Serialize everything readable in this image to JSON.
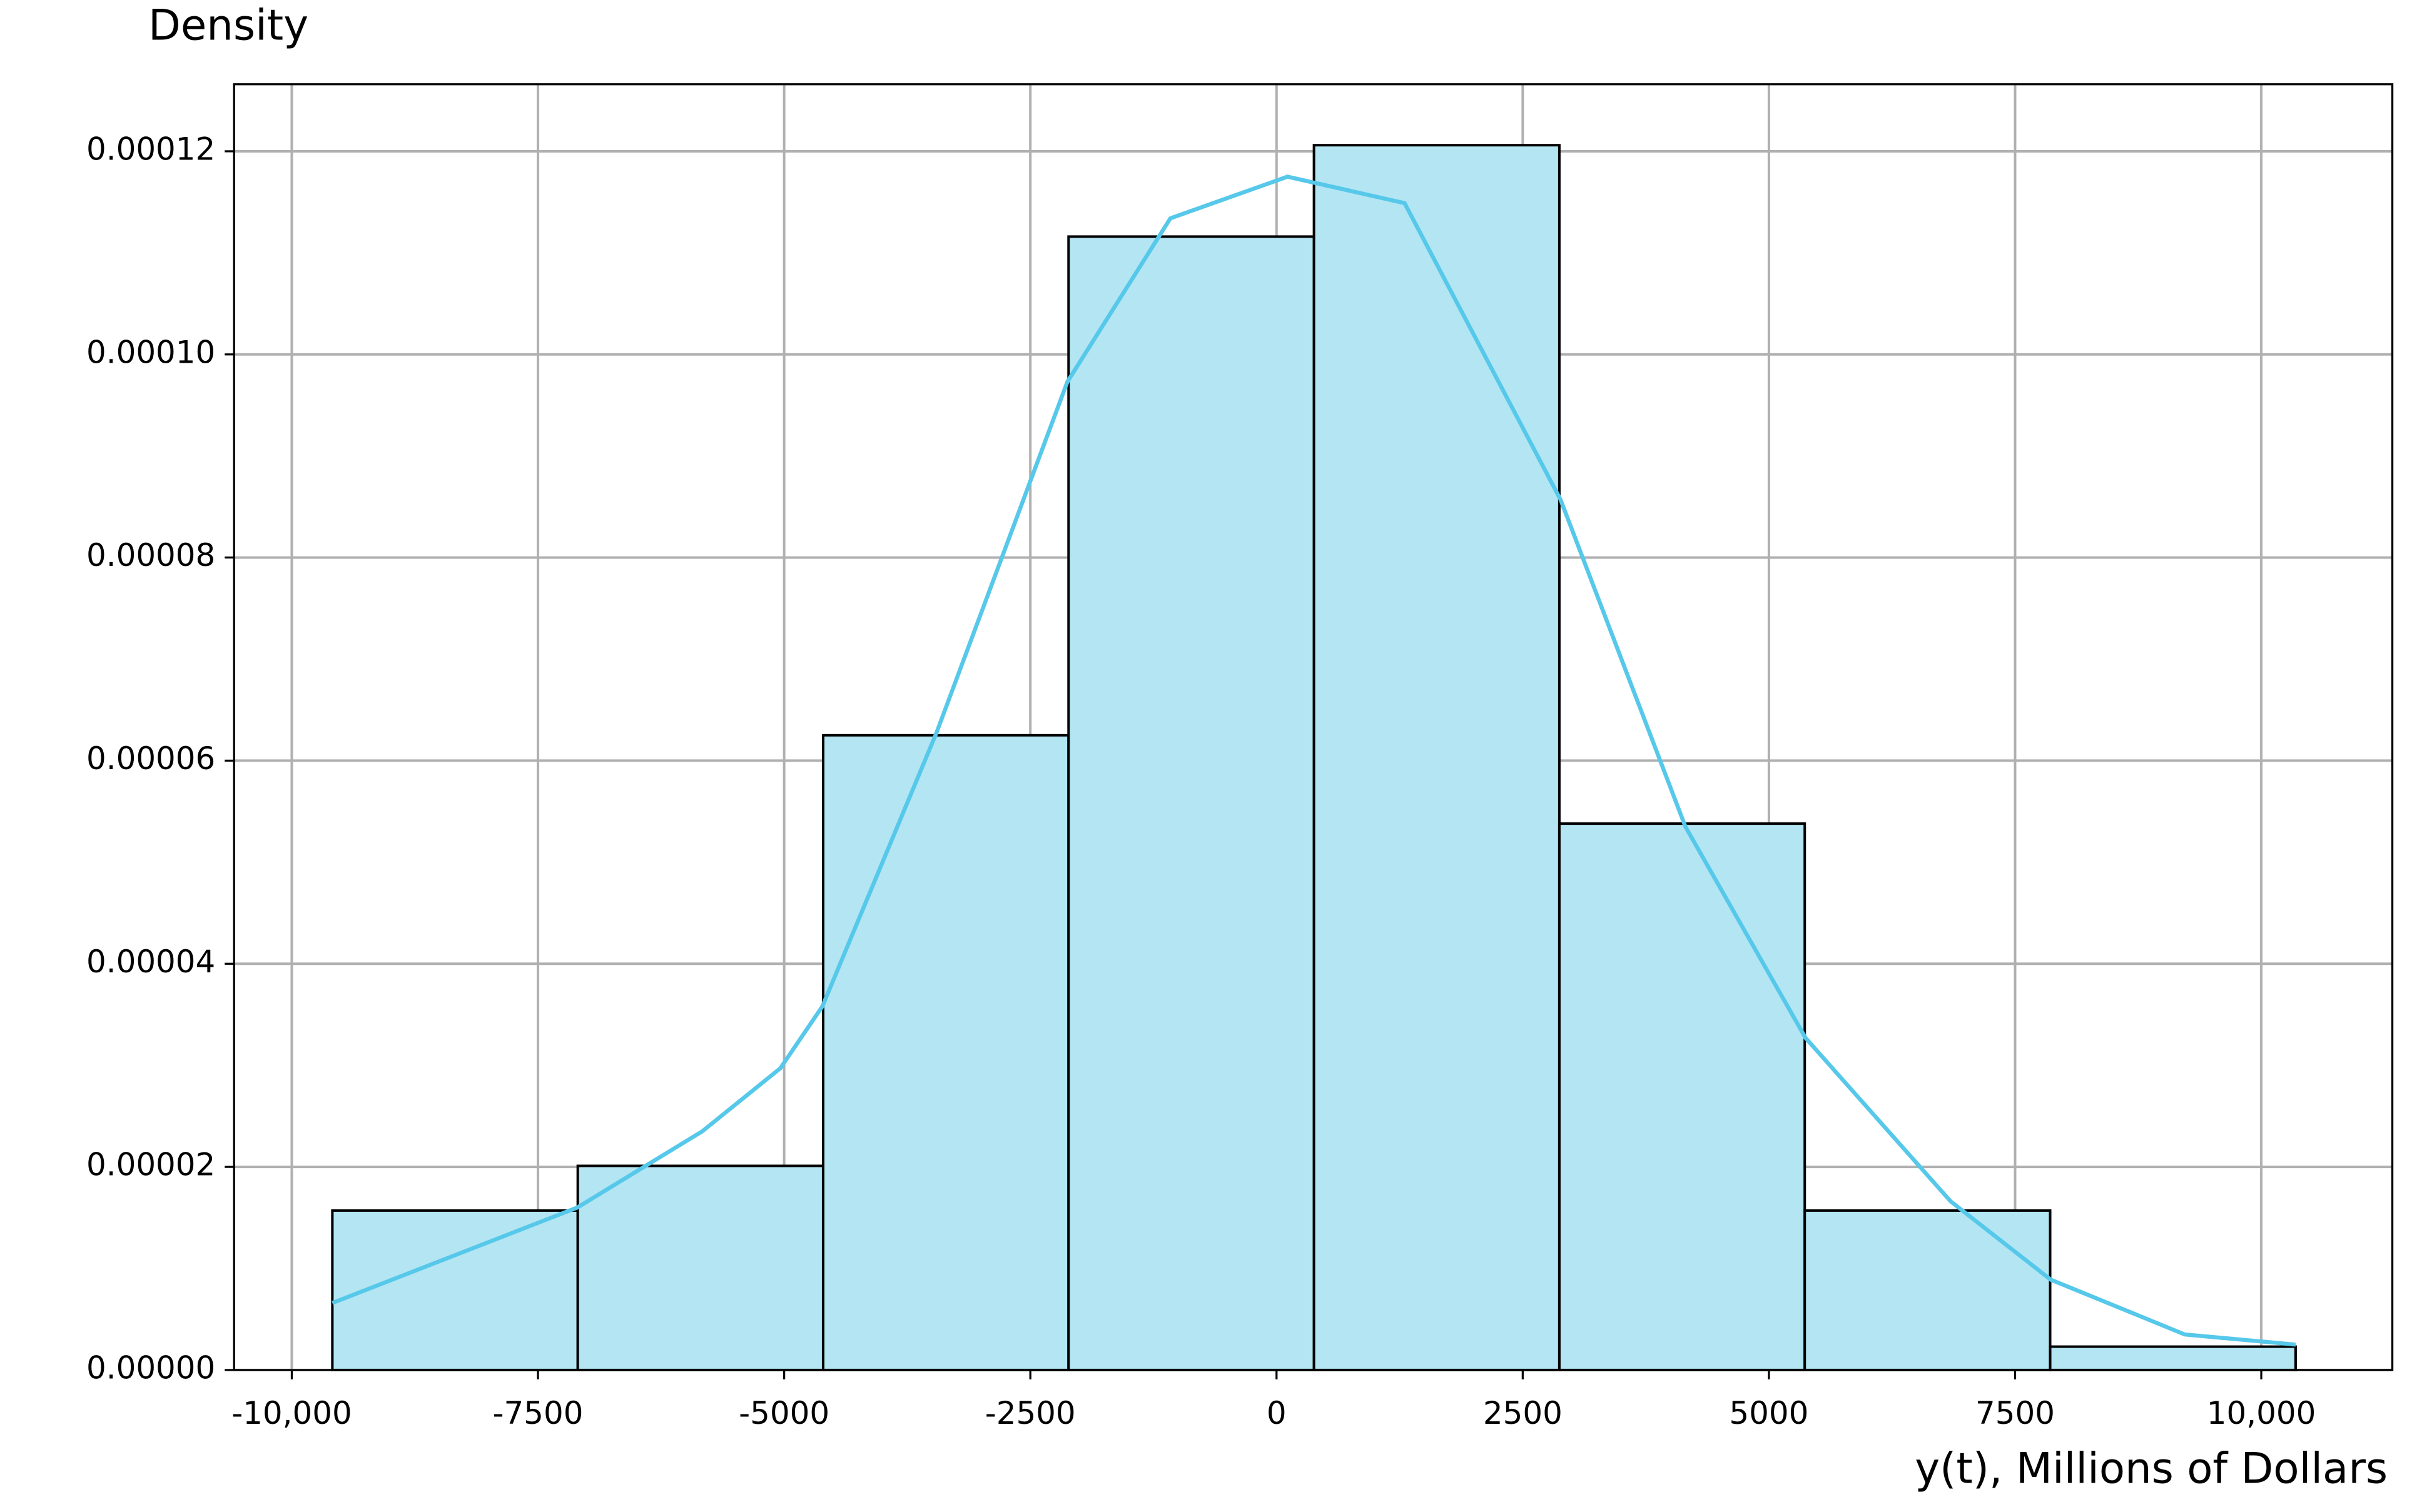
{
  "chart_data": {
    "type": "histogram",
    "y_label": "Density",
    "x_label": "y(t), Millions of Dollars",
    "bins": [
      -9588,
      -7096,
      -4604,
      -2112,
      380,
      2872,
      5364,
      7856,
      10349
    ],
    "values": [
      1.57e-05,
      2.01e-05,
      6.25e-05,
      0.0001116,
      0.0001206,
      5.38e-05,
      1.57e-05,
      2.3e-06
    ],
    "color": "#b3e5f3",
    "edgecolor": "#000000",
    "kde": {
      "color": "#56c8ea",
      "x": [
        -9588,
        -7100,
        -5832,
        -5040,
        -4612,
        -3455,
        -2124,
        -1078,
        111,
        1300,
        2884,
        4152,
        5372,
        6846,
        7861,
        9223,
        10349
      ],
      "values": [
        6.6e-06,
        1.6e-05,
        2.35e-05,
        2.97e-05,
        3.58e-05,
        6.27e-05,
        9.73e-05,
        0.0001134,
        0.0001175,
        0.0001149,
        8.57e-05,
        5.35e-05,
        3.27e-05,
        1.66e-05,
        8.9e-06,
        3.5e-06,
        2.5e-06
      ]
    },
    "xlim": [
      -10586,
      11331
    ],
    "ylim": [
      0,
      0.0001266
    ],
    "xticks": [
      {
        "value": -10000,
        "label": "-10,000"
      },
      {
        "value": -7500,
        "label": "-7500"
      },
      {
        "value": -5000,
        "label": "-5000"
      },
      {
        "value": -2500,
        "label": "-2500"
      },
      0,
      2500,
      5000,
      7500,
      {
        "value": 10000,
        "label": "10,000"
      }
    ],
    "yticks": [
      {
        "value": 0,
        "label": "0.00000"
      },
      {
        "value": 2e-05,
        "label": "0.00002"
      },
      {
        "value": 4e-05,
        "label": "0.00004"
      },
      {
        "value": 6e-05,
        "label": "0.00006"
      },
      {
        "value": 8e-05,
        "label": "0.00008"
      },
      {
        "value": 0.0001,
        "label": "0.00010"
      },
      {
        "value": 0.00012,
        "label": "0.00012"
      }
    ],
    "grid": true
  }
}
